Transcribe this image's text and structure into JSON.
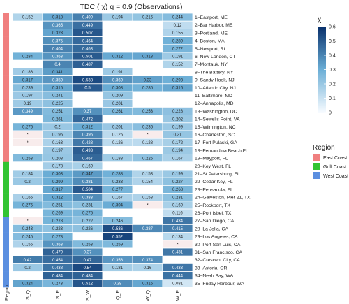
{
  "chart_data": {
    "type": "heatmap",
    "title": "TDC ( χ) q = 0.9  (Observations)",
    "columns": [
      "S_Q",
      "S_P",
      "S_W",
      "Q_P",
      "W_Q",
      "W_P"
    ],
    "rows": [
      "1–Eastport, ME",
      "2–Bar Harbor, ME",
      "3–Portland, ME",
      "4–Boston, MA",
      "5–Newport, RI",
      "6–New London, CT",
      "7–Montauk, NY",
      "8–The Battery, NY",
      "9–Sandy Hook, NJ",
      "10–Atlantic City, NJ",
      "11–Baltimore, MD",
      "12–Annapolis, MD",
      "13–Washington, DC",
      "14–Sewells Point, VA",
      "15–Wilmington, NC",
      "16–Charleston, SC",
      "17–Fort Pulaski, GA",
      "18–Fernandina Beach,FL",
      "19–Mayport, FL",
      "20–Key West, FL",
      "21–St Petersburg, FL",
      "22–Cedar Key, FL",
      "23–Pensacola, FL",
      "24–Galveston, Pier 21, TX",
      "25–Rockport, TX",
      "26–Port Isbel, TX",
      "27–San Diego, CA",
      "28–La Jolla, CA",
      "29–Los Angeles, CA",
      "30–Port San Luis, CA",
      "31–San Francisco, CA",
      "32–Crescent City, CA",
      "33–Astoria, OR",
      "34–Neah Bay, WA",
      "35–Friday Harbour, WA"
    ],
    "values": [
      [
        0.152,
        0.318,
        0.409,
        0.194,
        0.216,
        0.244
      ],
      [
        null,
        0.365,
        0.449,
        null,
        null,
        0.12
      ],
      [
        null,
        0.323,
        0.507,
        null,
        null,
        0.155
      ],
      [
        null,
        0.375,
        0.464,
        null,
        null,
        0.289
      ],
      [
        null,
        0.404,
        0.463,
        null,
        null,
        0.272
      ],
      [
        0.284,
        0.363,
        0.501,
        0.312,
        0.318,
        0.191
      ],
      [
        null,
        0.4,
        0.487,
        null,
        null,
        0.152
      ],
      [
        0.186,
        0.341,
        null,
        0.191,
        null,
        null
      ],
      [
        0.317,
        0.359,
        0.538,
        0.369,
        0.33,
        0.293
      ],
      [
        0.239,
        0.315,
        0.5,
        0.308,
        0.285,
        0.316
      ],
      [
        0.197,
        0.241,
        null,
        0.209,
        null,
        null
      ],
      [
        0.19,
        0.225,
        null,
        0.201,
        null,
        null
      ],
      [
        0.349,
        0.251,
        0.37,
        0.261,
        0.253,
        0.228
      ],
      [
        null,
        0.261,
        0.472,
        null,
        null,
        0.202
      ],
      [
        0.276,
        0.2,
        0.312,
        0.201,
        0.236,
        0.199
      ],
      [
        "*",
        0.196,
        0.396,
        0.126,
        "*",
        0.21
      ],
      [
        "*",
        0.163,
        0.428,
        0.126,
        0.128,
        0.172
      ],
      [
        null,
        0.197,
        0.493,
        null,
        null,
        0.194
      ],
      [
        0.253,
        0.208,
        0.467,
        0.188,
        0.226,
        0.167
      ],
      [
        null,
        0.178,
        0.169,
        null,
        null,
        null
      ],
      [
        0.184,
        0.303,
        0.347,
        0.288,
        0.153,
        0.199
      ],
      [
        0.2,
        0.299,
        0.381,
        0.233,
        0.154,
        0.227
      ],
      [
        null,
        0.317,
        0.504,
        0.277,
        null,
        0.268
      ],
      [
        0.166,
        0.312,
        0.383,
        0.167,
        0.158,
        0.231
      ],
      [
        0.276,
        0.251,
        0.231,
        0.304,
        "*",
        0.169
      ],
      [
        null,
        0.269,
        0.275,
        null,
        null,
        0.116
      ],
      [
        "*",
        0.278,
        0.222,
        0.246,
        null,
        0.434
      ],
      [
        0.243,
        0.223,
        0.226,
        0.536,
        0.387,
        0.415
      ],
      [
        0.245,
        0.278,
        null,
        0.552,
        null,
        0.134
      ],
      [
        0.155,
        0.363,
        0.253,
        0.259,
        null,
        "*"
      ],
      [
        null,
        0.479,
        0.37,
        null,
        null,
        0.431
      ],
      [
        0.42,
        0.454,
        0.47,
        0.356,
        0.374,
        null
      ],
      [
        0.2,
        0.438,
        0.54,
        0.181,
        0.16,
        0.433
      ],
      [
        null,
        0.484,
        0.484,
        null,
        null,
        0.444
      ],
      [
        0.324,
        0.273,
        0.512,
        0.38,
        0.316,
        0.081
      ]
    ],
    "region_axis_label": "Region",
    "row_regions": [
      "East Coast",
      "East Coast",
      "East Coast",
      "East Coast",
      "East Coast",
      "East Coast",
      "East Coast",
      "East Coast",
      "East Coast",
      "East Coast",
      "East Coast",
      "East Coast",
      "East Coast",
      "East Coast",
      "East Coast",
      "East Coast",
      "East Coast",
      "East Coast",
      "East Coast",
      "Gulf Coast",
      "Gulf Coast",
      "Gulf Coast",
      "Gulf Coast",
      "Gulf Coast",
      "Gulf Coast",
      "Gulf Coast",
      "West Coast",
      "West Coast",
      "West Coast",
      "West Coast",
      "West Coast",
      "West Coast",
      "West Coast",
      "West Coast",
      "West Coast"
    ],
    "region_legend": {
      "title": "Region",
      "items": [
        {
          "name": "East Coast",
          "color": "#F07F7F"
        },
        {
          "name": "Gulf Coast",
          "color": "#32C432"
        },
        {
          "name": "West Coast",
          "color": "#5B8FE0"
        }
      ]
    },
    "colorbar": {
      "title": "χ",
      "ticks": [
        0,
        0.1,
        0.2,
        0.3,
        0.4,
        0.5,
        0.6
      ],
      "range": [
        0,
        0.6
      ],
      "color_low": "#F7FBFF",
      "color_high": "#08306B"
    },
    "missing_color": "#FFFFFF",
    "star_cell_color": "#F8ECEC"
  }
}
